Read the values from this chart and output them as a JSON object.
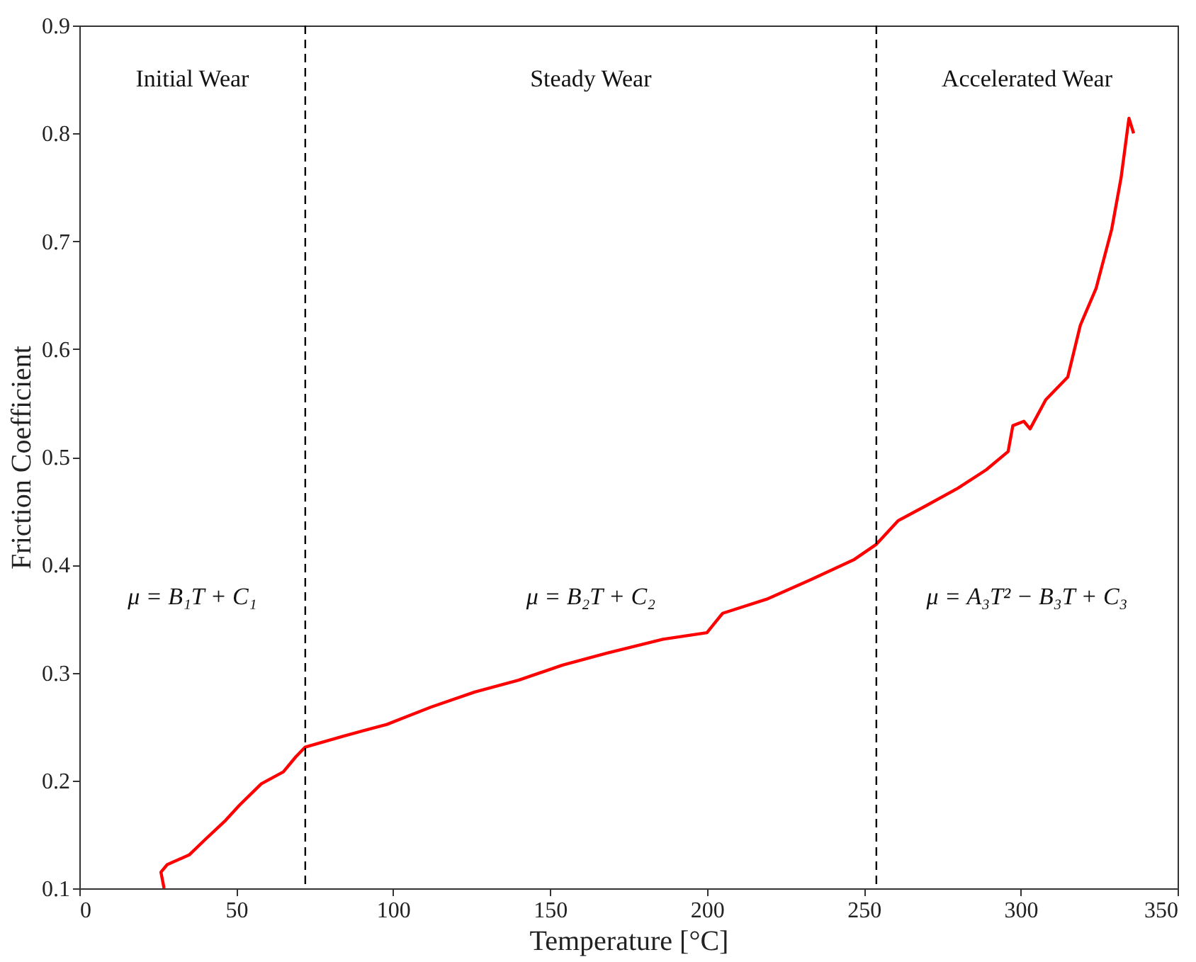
{
  "chart_data": {
    "type": "line",
    "xlabel": "Temperature [°C]",
    "ylabel": "Friction Coefficient",
    "xlim": [
      0,
      350
    ],
    "xticks": [
      0,
      50,
      100,
      150,
      200,
      250,
      300,
      350
    ],
    "ylim": [
      0.1,
      0.9
    ],
    "yticks": [
      0.1,
      0.2,
      0.3,
      0.4,
      0.5,
      0.6,
      0.7,
      0.8,
      0.9
    ],
    "grid": false,
    "marker": "none",
    "line_style": "solid",
    "series": [
      {
        "color": "#ff0000",
        "x": [
          27,
          26,
          28,
          35,
          40,
          46.6,
          51,
          58,
          65,
          69,
          72,
          84,
          98,
          112,
          126,
          140,
          154,
          168,
          186,
          200,
          205,
          219,
          233,
          247,
          254,
          261,
          270,
          280,
          289,
          296,
          297.5,
          301,
          303,
          308,
          315,
          319,
          324,
          329,
          332,
          334.5,
          336
        ],
        "values": [
          0.1,
          0.115,
          0.122,
          0.131,
          0.145,
          0.163,
          0.177,
          0.197,
          0.208,
          0.222,
          0.231,
          0.241,
          0.252,
          0.268,
          0.282,
          0.293,
          0.307,
          0.318,
          0.331,
          0.337,
          0.355,
          0.368,
          0.386,
          0.405,
          0.419,
          0.441,
          0.455,
          0.471,
          0.488,
          0.505,
          0.529,
          0.533,
          0.526,
          0.553,
          0.574,
          0.622,
          0.656,
          0.711,
          0.759,
          0.814,
          0.8
        ]
      }
    ],
    "ref_lines": [
      {
        "axis": "x",
        "value": 72,
        "color": "#000000",
        "line_style": "dashed"
      },
      {
        "axis": "x",
        "value": 254,
        "color": "#000000",
        "line_style": "dashed"
      }
    ],
    "annotations": [
      "Initial Wear",
      "Steady Wear",
      "Accelerated Wear",
      "μ = B₁T + C₁",
      "μ = B₂T + C₂",
      "μ = A₃T² − B₃T + C₃"
    ]
  }
}
